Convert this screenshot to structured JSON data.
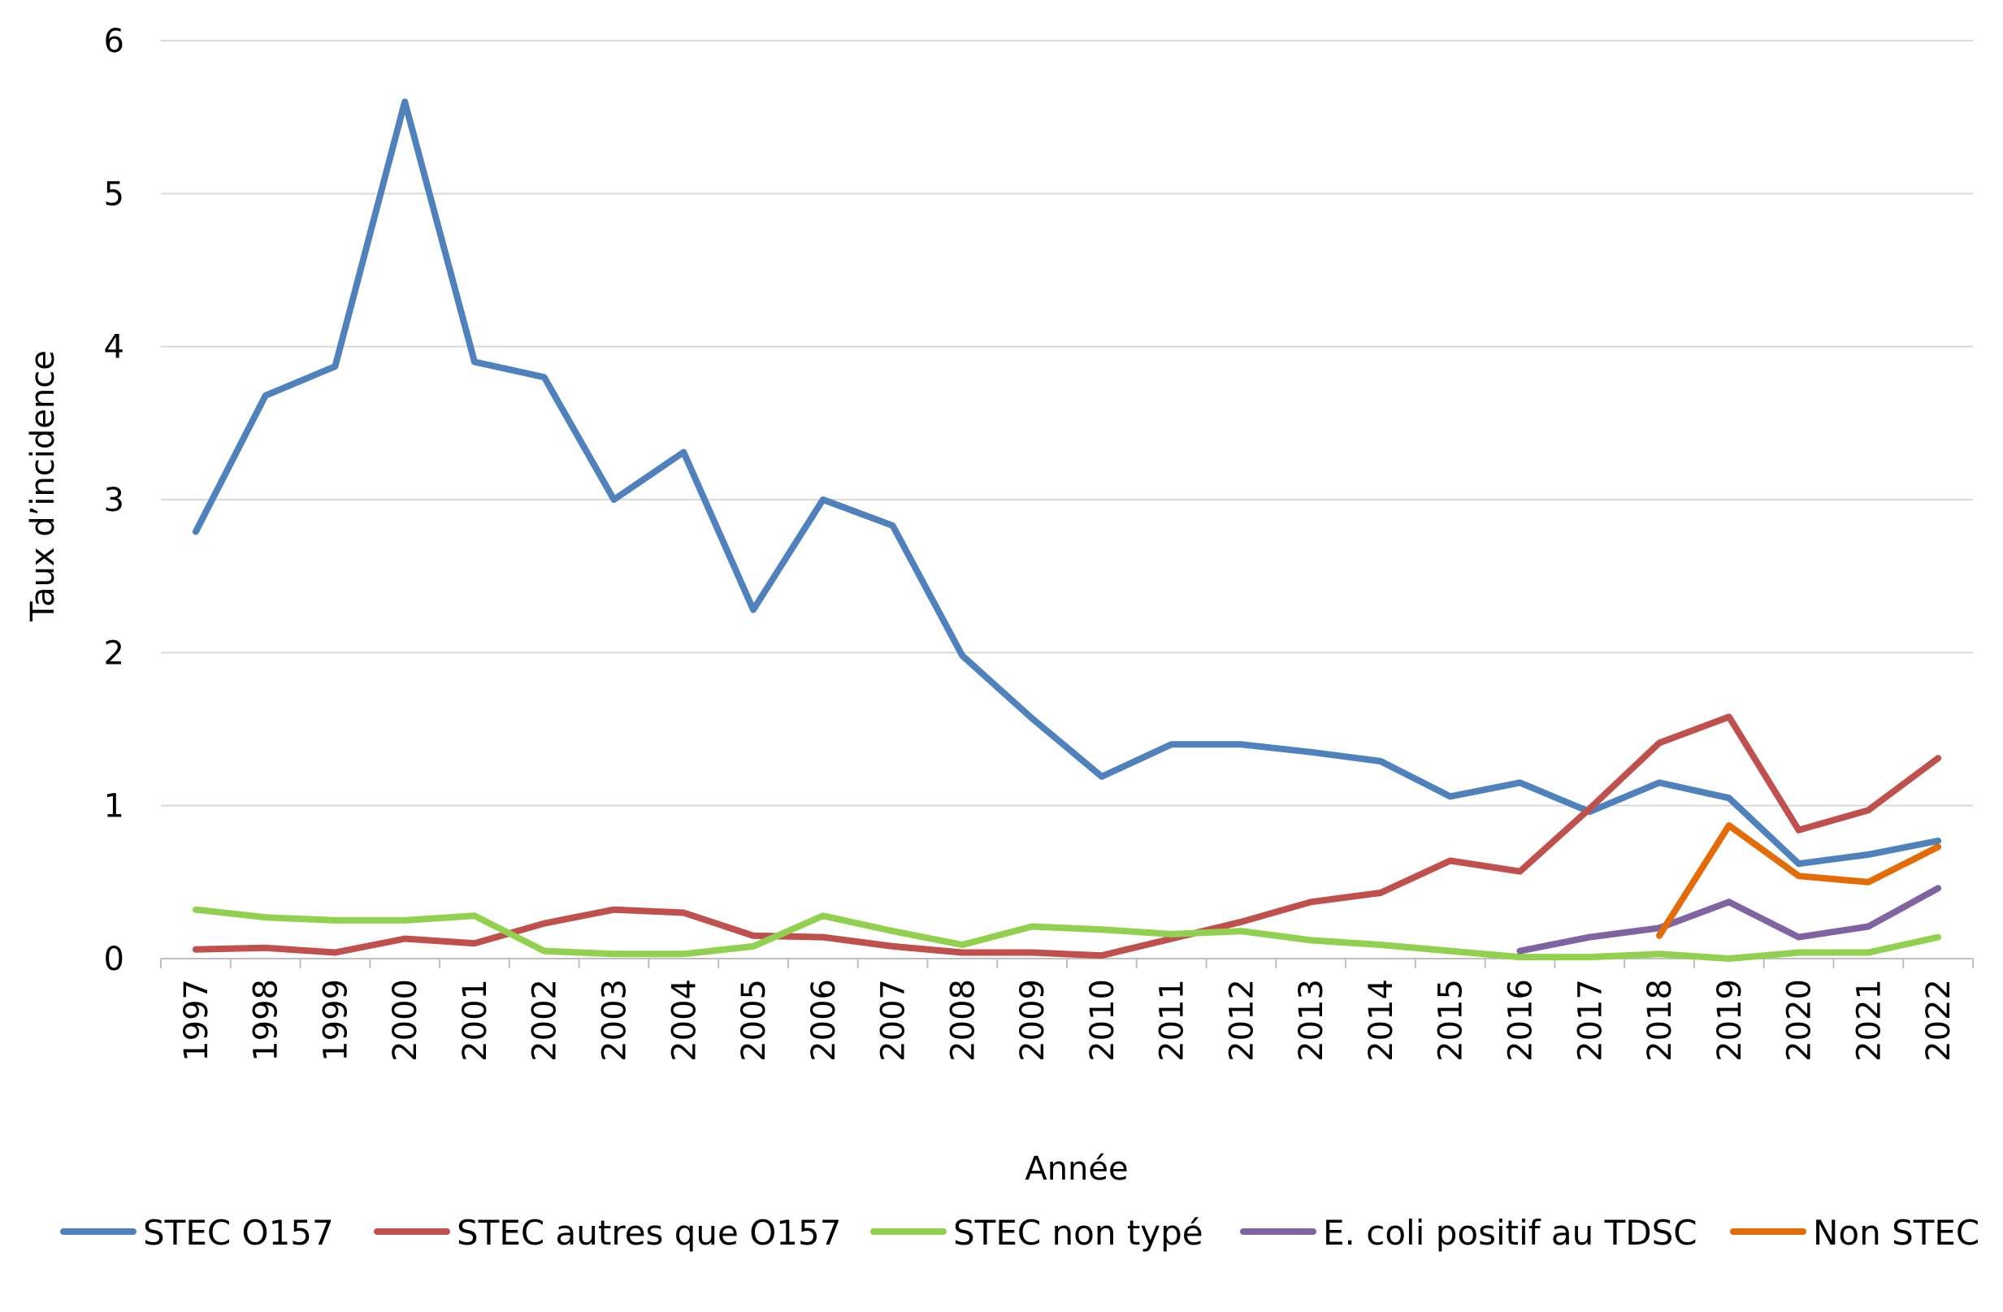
{
  "chart_data": {
    "type": "line",
    "title": "",
    "xlabel": "Année",
    "ylabel": "Taux d’incidence",
    "ylim": [
      0,
      6
    ],
    "yticks": [
      0,
      1,
      2,
      3,
      4,
      5,
      6
    ],
    "grid": true,
    "legend_position": "bottom",
    "categories": [
      "1997",
      "1998",
      "1999",
      "2000",
      "2001",
      "2002",
      "2003",
      "2004",
      "2005",
      "2006",
      "2007",
      "2008",
      "2009",
      "2010",
      "2011",
      "2012",
      "2013",
      "2014",
      "2015",
      "2016",
      "2017",
      "2018",
      "2019",
      "2020",
      "2021",
      "2022"
    ],
    "series": [
      {
        "name": "STEC O157",
        "color": "#4F81BD",
        "values": [
          2.79,
          3.68,
          3.87,
          5.6,
          3.9,
          3.8,
          3.0,
          3.31,
          2.28,
          3.0,
          2.83,
          1.98,
          1.57,
          1.19,
          1.4,
          1.4,
          1.35,
          1.29,
          1.06,
          1.15,
          0.96,
          1.15,
          1.05,
          0.62,
          0.68,
          0.77
        ]
      },
      {
        "name": "STEC autres que O157",
        "color": "#C0504D",
        "values": [
          0.06,
          0.07,
          0.04,
          0.13,
          0.1,
          0.23,
          0.32,
          0.3,
          0.15,
          0.14,
          0.08,
          0.04,
          0.04,
          0.02,
          0.13,
          0.24,
          0.37,
          0.43,
          0.64,
          0.57,
          0.98,
          1.41,
          1.58,
          0.84,
          0.97,
          1.31
        ]
      },
      {
        "name": "STEC non typé",
        "color": "#92D050",
        "values": [
          0.32,
          0.27,
          0.25,
          0.25,
          0.28,
          0.05,
          0.03,
          0.03,
          0.08,
          0.28,
          0.18,
          0.09,
          0.21,
          0.19,
          0.16,
          0.18,
          0.12,
          0.09,
          0.05,
          0.01,
          0.01,
          0.03,
          0.0,
          0.04,
          0.04,
          0.14
        ]
      },
      {
        "name": "E. coli positif au TDSC",
        "color": "#8064A2",
        "values": [
          null,
          null,
          null,
          null,
          null,
          null,
          null,
          null,
          null,
          null,
          null,
          null,
          null,
          null,
          null,
          null,
          null,
          null,
          null,
          0.05,
          0.14,
          0.2,
          0.37,
          0.14,
          0.21,
          0.46
        ]
      },
      {
        "name": "Non STEC",
        "color": "#E36C09",
        "values": [
          null,
          null,
          null,
          null,
          null,
          null,
          null,
          null,
          null,
          null,
          null,
          null,
          null,
          null,
          null,
          null,
          null,
          null,
          null,
          null,
          null,
          0.15,
          0.87,
          0.54,
          0.5,
          0.73
        ]
      }
    ]
  }
}
